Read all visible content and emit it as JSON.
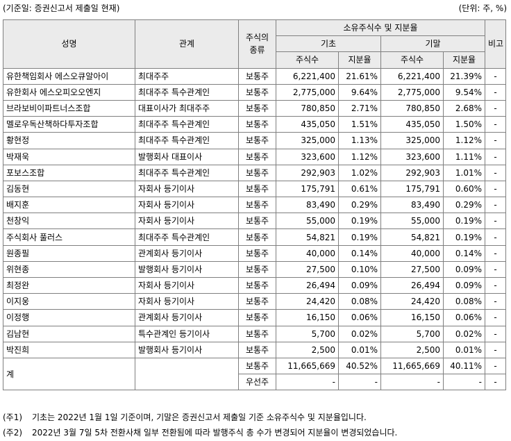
{
  "header": {
    "basis": "(기준일: 증권신고서 제출일 현재)",
    "unit": "(단위: 주, %)"
  },
  "columns": {
    "name": "성명",
    "relation": "관계",
    "stock_type": "주식의 종류",
    "holdings_group": "소유주식수 및 지분율",
    "begin": "기초",
    "end": "기말",
    "shares": "주식수",
    "ratio": "지분율",
    "remark": "비고"
  },
  "rows": [
    {
      "name": "유한책임회사 에스오큐알아이",
      "relation": "최대주주",
      "type": "보통주",
      "begin_shares": "6,221,400",
      "begin_ratio": "21.61%",
      "end_shares": "6,221,400",
      "end_ratio": "21.39%",
      "remark": "-"
    },
    {
      "name": "유한회사 에스오피오오엔지",
      "relation": "최대주주 특수관계인",
      "type": "보통주",
      "begin_shares": "2,775,000",
      "begin_ratio": "9.64%",
      "end_shares": "2,775,000",
      "end_ratio": "9.54%",
      "remark": "-"
    },
    {
      "name": "브라보비이파트너스조합",
      "relation": "대표이사가 최대주주",
      "type": "보통주",
      "begin_shares": "780,850",
      "begin_ratio": "2.71%",
      "end_shares": "780,850",
      "end_ratio": "2.68%",
      "remark": "-"
    },
    {
      "name": "멜로우독산책하다투자조합",
      "relation": "최대주주 특수관계인",
      "type": "보통주",
      "begin_shares": "435,050",
      "begin_ratio": "1.51%",
      "end_shares": "435,050",
      "end_ratio": "1.50%",
      "remark": "-"
    },
    {
      "name": "황현정",
      "relation": "최대주주 특수관계인",
      "type": "보통주",
      "begin_shares": "325,000",
      "begin_ratio": "1.13%",
      "end_shares": "325,000",
      "end_ratio": "1.12%",
      "remark": "-"
    },
    {
      "name": "박재욱",
      "relation": "발행회사 대표이사",
      "type": "보통주",
      "begin_shares": "323,600",
      "begin_ratio": "1.12%",
      "end_shares": "323,600",
      "end_ratio": "1.11%",
      "remark": "-"
    },
    {
      "name": "포보스조합",
      "relation": "최대주주 특수관계인",
      "type": "보통주",
      "begin_shares": "292,903",
      "begin_ratio": "1.02%",
      "end_shares": "292,903",
      "end_ratio": "1.01%",
      "remark": "-"
    },
    {
      "name": "김동현",
      "relation": "자회사 등기이사",
      "type": "보통주",
      "begin_shares": "175,791",
      "begin_ratio": "0.61%",
      "end_shares": "175,791",
      "end_ratio": "0.60%",
      "remark": "-"
    },
    {
      "name": "배지훈",
      "relation": "자회사 등기이사",
      "type": "보통주",
      "begin_shares": "83,490",
      "begin_ratio": "0.29%",
      "end_shares": "83,490",
      "end_ratio": "0.29%",
      "remark": "-"
    },
    {
      "name": "천창익",
      "relation": "자회사 등기이사",
      "type": "보통주",
      "begin_shares": "55,000",
      "begin_ratio": "0.19%",
      "end_shares": "55,000",
      "end_ratio": "0.19%",
      "remark": "-"
    },
    {
      "name": "주식회사 풀러스",
      "relation": "최대주주 특수관계인",
      "type": "보통주",
      "begin_shares": "54,821",
      "begin_ratio": "0.19%",
      "end_shares": "54,821",
      "end_ratio": "0.19%",
      "remark": "-"
    },
    {
      "name": "원종필",
      "relation": "관계회사 등기이사",
      "type": "보통주",
      "begin_shares": "40,000",
      "begin_ratio": "0.14%",
      "end_shares": "40,000",
      "end_ratio": "0.14%",
      "remark": "-"
    },
    {
      "name": "위현종",
      "relation": "발행회사 등기이사",
      "type": "보통주",
      "begin_shares": "27,500",
      "begin_ratio": "0.10%",
      "end_shares": "27,500",
      "end_ratio": "0.09%",
      "remark": "-"
    },
    {
      "name": "최정완",
      "relation": "자회사 등기이사",
      "type": "보통주",
      "begin_shares": "26,494",
      "begin_ratio": "0.09%",
      "end_shares": "26,494",
      "end_ratio": "0.09%",
      "remark": "-"
    },
    {
      "name": "이지웅",
      "relation": "자회사 등기이사",
      "type": "보통주",
      "begin_shares": "24,420",
      "begin_ratio": "0.08%",
      "end_shares": "24,420",
      "end_ratio": "0.08%",
      "remark": "-"
    },
    {
      "name": "이정행",
      "relation": "관계회사 등기이사",
      "type": "보통주",
      "begin_shares": "16,150",
      "begin_ratio": "0.06%",
      "end_shares": "16,150",
      "end_ratio": "0.06%",
      "remark": "-"
    },
    {
      "name": "김남현",
      "relation": "특수관계인 등기이사",
      "type": "보통주",
      "begin_shares": "5,700",
      "begin_ratio": "0.02%",
      "end_shares": "5,700",
      "end_ratio": "0.02%",
      "remark": "-"
    },
    {
      "name": "박진희",
      "relation": "발행회사 등기이사",
      "type": "보통주",
      "begin_shares": "2,500",
      "begin_ratio": "0.01%",
      "end_shares": "2,500",
      "end_ratio": "0.01%",
      "remark": "-"
    }
  ],
  "total": {
    "label": "계",
    "common": {
      "type": "보통주",
      "begin_shares": "11,665,669",
      "begin_ratio": "40.52%",
      "end_shares": "11,665,669",
      "end_ratio": "40.11%",
      "remark": "-"
    },
    "preferred": {
      "type": "우선주",
      "begin_shares": "-",
      "begin_ratio": "-",
      "end_shares": "-",
      "end_ratio": "-",
      "remark": "-"
    }
  },
  "notes": [
    {
      "tag": "(주1)",
      "text": "기초는 2022년 1월 1일 기준이며, 기말은 증권신고서 제출일 기준 소유주식수 및 지분율입니다."
    },
    {
      "tag": "(주2)",
      "text": "2022년 3월 7일 5차 전환사채 일부 전환됨에 따라 발행주식 총 수가 변경되어 지분율이 변경되었습니다."
    }
  ]
}
